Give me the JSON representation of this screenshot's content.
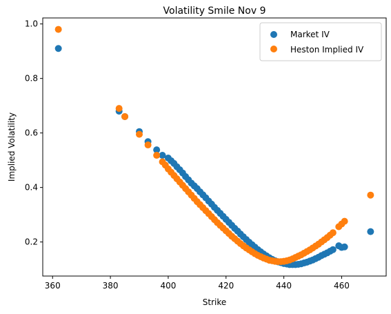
{
  "chart_data": {
    "type": "scatter",
    "title": "Volatility Smile Nov 9",
    "xlabel": "Strike",
    "ylabel": "Implied Volatility",
    "xlim": [
      356.6,
      475.4
    ],
    "ylim": [
      0.075,
      1.022
    ],
    "x_ticks": [
      360,
      380,
      400,
      420,
      440,
      460
    ],
    "y_ticks": [
      0.2,
      0.4,
      0.6,
      0.8,
      1.0
    ],
    "x_tick_labels": [
      "360",
      "380",
      "400",
      "420",
      "440",
      "460"
    ],
    "y_tick_labels": [
      "0.2",
      "0.4",
      "0.6",
      "0.8",
      "1.0"
    ],
    "grid": false,
    "legend_position": "top-right",
    "series": [
      {
        "name": "Market IV",
        "color": "#1f77b4",
        "points": [
          [
            362,
            0.91
          ],
          [
            383,
            0.68
          ],
          [
            385,
            0.66
          ],
          [
            390,
            0.605
          ],
          [
            393,
            0.568
          ],
          [
            396,
            0.538
          ],
          [
            398,
            0.518
          ],
          [
            400,
            0.508
          ],
          [
            401,
            0.498
          ],
          [
            402,
            0.488
          ],
          [
            403,
            0.476
          ],
          [
            404,
            0.465
          ],
          [
            405,
            0.453
          ],
          [
            406,
            0.44
          ],
          [
            407,
            0.428
          ],
          [
            408,
            0.416
          ],
          [
            409,
            0.406
          ],
          [
            410,
            0.396
          ],
          [
            411,
            0.384
          ],
          [
            412,
            0.373
          ],
          [
            413,
            0.362
          ],
          [
            414,
            0.35
          ],
          [
            415,
            0.339
          ],
          [
            416,
            0.327
          ],
          [
            417,
            0.316
          ],
          [
            418,
            0.305
          ],
          [
            419,
            0.294
          ],
          [
            420,
            0.283
          ],
          [
            421,
            0.272
          ],
          [
            422,
            0.261
          ],
          [
            423,
            0.25
          ],
          [
            424,
            0.24
          ],
          [
            425,
            0.229
          ],
          [
            426,
            0.219
          ],
          [
            427,
            0.209
          ],
          [
            428,
            0.199
          ],
          [
            429,
            0.19
          ],
          [
            430,
            0.181
          ],
          [
            431,
            0.172
          ],
          [
            432,
            0.164
          ],
          [
            433,
            0.156
          ],
          [
            434,
            0.149
          ],
          [
            435,
            0.142
          ],
          [
            436,
            0.136
          ],
          [
            437,
            0.131
          ],
          [
            438,
            0.127
          ],
          [
            439,
            0.124
          ],
          [
            440,
            0.121
          ],
          [
            441,
            0.119
          ],
          [
            442,
            0.117
          ],
          [
            443,
            0.117
          ],
          [
            444,
            0.117
          ],
          [
            445,
            0.118
          ],
          [
            446,
            0.12
          ],
          [
            447,
            0.123
          ],
          [
            448,
            0.126
          ],
          [
            449,
            0.13
          ],
          [
            450,
            0.134
          ],
          [
            451,
            0.139
          ],
          [
            452,
            0.144
          ],
          [
            453,
            0.15
          ],
          [
            454,
            0.155
          ],
          [
            455,
            0.16
          ],
          [
            456,
            0.166
          ],
          [
            457,
            0.172
          ],
          [
            459,
            0.186
          ],
          [
            460,
            0.18
          ],
          [
            461,
            0.182
          ],
          [
            470,
            0.238
          ]
        ]
      },
      {
        "name": "Heston Implied IV",
        "color": "#ff7f0e",
        "points": [
          [
            362,
            0.98
          ],
          [
            383,
            0.69
          ],
          [
            385,
            0.66
          ],
          [
            390,
            0.595
          ],
          [
            393,
            0.556
          ],
          [
            396,
            0.518
          ],
          [
            398,
            0.494
          ],
          [
            399,
            0.482
          ],
          [
            400,
            0.468
          ],
          [
            401,
            0.456
          ],
          [
            402,
            0.444
          ],
          [
            403,
            0.432
          ],
          [
            404,
            0.42
          ],
          [
            405,
            0.408
          ],
          [
            406,
            0.396
          ],
          [
            407,
            0.384
          ],
          [
            408,
            0.372
          ],
          [
            409,
            0.36
          ],
          [
            410,
            0.348
          ],
          [
            411,
            0.337
          ],
          [
            412,
            0.326
          ],
          [
            413,
            0.315
          ],
          [
            414,
            0.304
          ],
          [
            415,
            0.293
          ],
          [
            416,
            0.282
          ],
          [
            417,
            0.271
          ],
          [
            418,
            0.261
          ],
          [
            419,
            0.251
          ],
          [
            420,
            0.241
          ],
          [
            421,
            0.231
          ],
          [
            422,
            0.221
          ],
          [
            423,
            0.212
          ],
          [
            424,
            0.203
          ],
          [
            425,
            0.194
          ],
          [
            426,
            0.186
          ],
          [
            427,
            0.178
          ],
          [
            428,
            0.171
          ],
          [
            429,
            0.164
          ],
          [
            430,
            0.157
          ],
          [
            431,
            0.151
          ],
          [
            432,
            0.146
          ],
          [
            433,
            0.141
          ],
          [
            434,
            0.137
          ],
          [
            435,
            0.133
          ],
          [
            436,
            0.131
          ],
          [
            437,
            0.129
          ],
          [
            438,
            0.128
          ],
          [
            439,
            0.128
          ],
          [
            440,
            0.129
          ],
          [
            441,
            0.131
          ],
          [
            442,
            0.134
          ],
          [
            443,
            0.138
          ],
          [
            444,
            0.143
          ],
          [
            445,
            0.148
          ],
          [
            446,
            0.153
          ],
          [
            447,
            0.159
          ],
          [
            448,
            0.165
          ],
          [
            449,
            0.171
          ],
          [
            450,
            0.178
          ],
          [
            451,
            0.185
          ],
          [
            452,
            0.192
          ],
          [
            453,
            0.2
          ],
          [
            454,
            0.208
          ],
          [
            455,
            0.216
          ],
          [
            456,
            0.225
          ],
          [
            457,
            0.234
          ],
          [
            459,
            0.256
          ],
          [
            460,
            0.266
          ],
          [
            461,
            0.276
          ],
          [
            470,
            0.372
          ]
        ]
      }
    ]
  }
}
